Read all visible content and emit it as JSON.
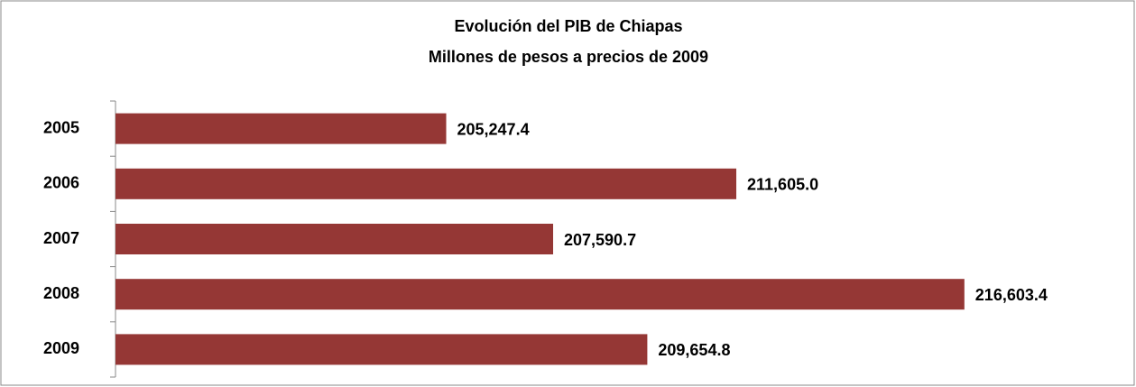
{
  "chart_data": {
    "type": "bar",
    "orientation": "horizontal",
    "title": "Evolución del PIB de Chiapas",
    "subtitle": "Millones de pesos a precios de 2009",
    "categories": [
      "2005",
      "2006",
      "2007",
      "2008",
      "2009"
    ],
    "values": [
      205247.4,
      211605.0,
      207590.7,
      216603.4,
      209654.8
    ],
    "value_labels": [
      "205,247.4",
      "211,605.0",
      "207,590.7",
      "216,603.4",
      "209,654.8"
    ],
    "color": "#953735",
    "xlim": [
      198000,
      219000
    ]
  }
}
